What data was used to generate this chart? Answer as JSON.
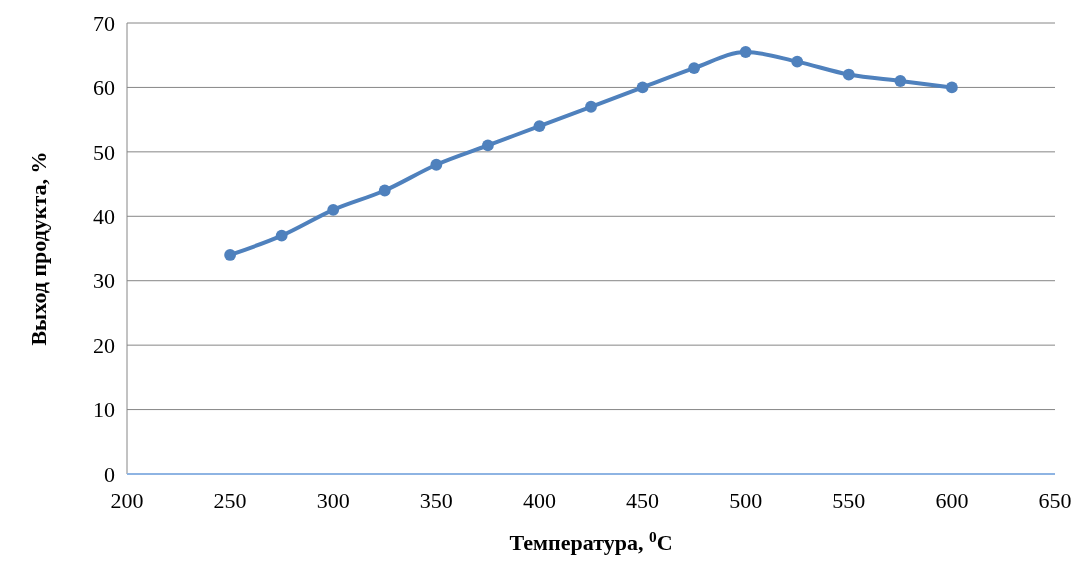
{
  "chart_data": {
    "type": "line",
    "xlabel": "Температура, $^{0}$C",
    "ylabel": "Выход продукта, %",
    "x": [
      250,
      275,
      300,
      325,
      350,
      375,
      400,
      425,
      450,
      475,
      500,
      525,
      550,
      575,
      600
    ],
    "series": [
      {
        "color": "#4f81bd",
        "values": [
          34,
          37,
          41,
          44,
          48,
          51,
          54,
          57,
          60,
          63,
          65.5,
          64,
          62,
          61,
          60
        ]
      }
    ],
    "xlim": [
      200,
      650
    ],
    "xticks": [
      200,
      250,
      300,
      350,
      400,
      450,
      500,
      550,
      600,
      650
    ],
    "ylim": [
      0,
      70
    ],
    "yticks": [
      0,
      10,
      20,
      30,
      40,
      50,
      60,
      70
    ],
    "grid": "y",
    "marker": "circle",
    "line_style": "solid"
  }
}
